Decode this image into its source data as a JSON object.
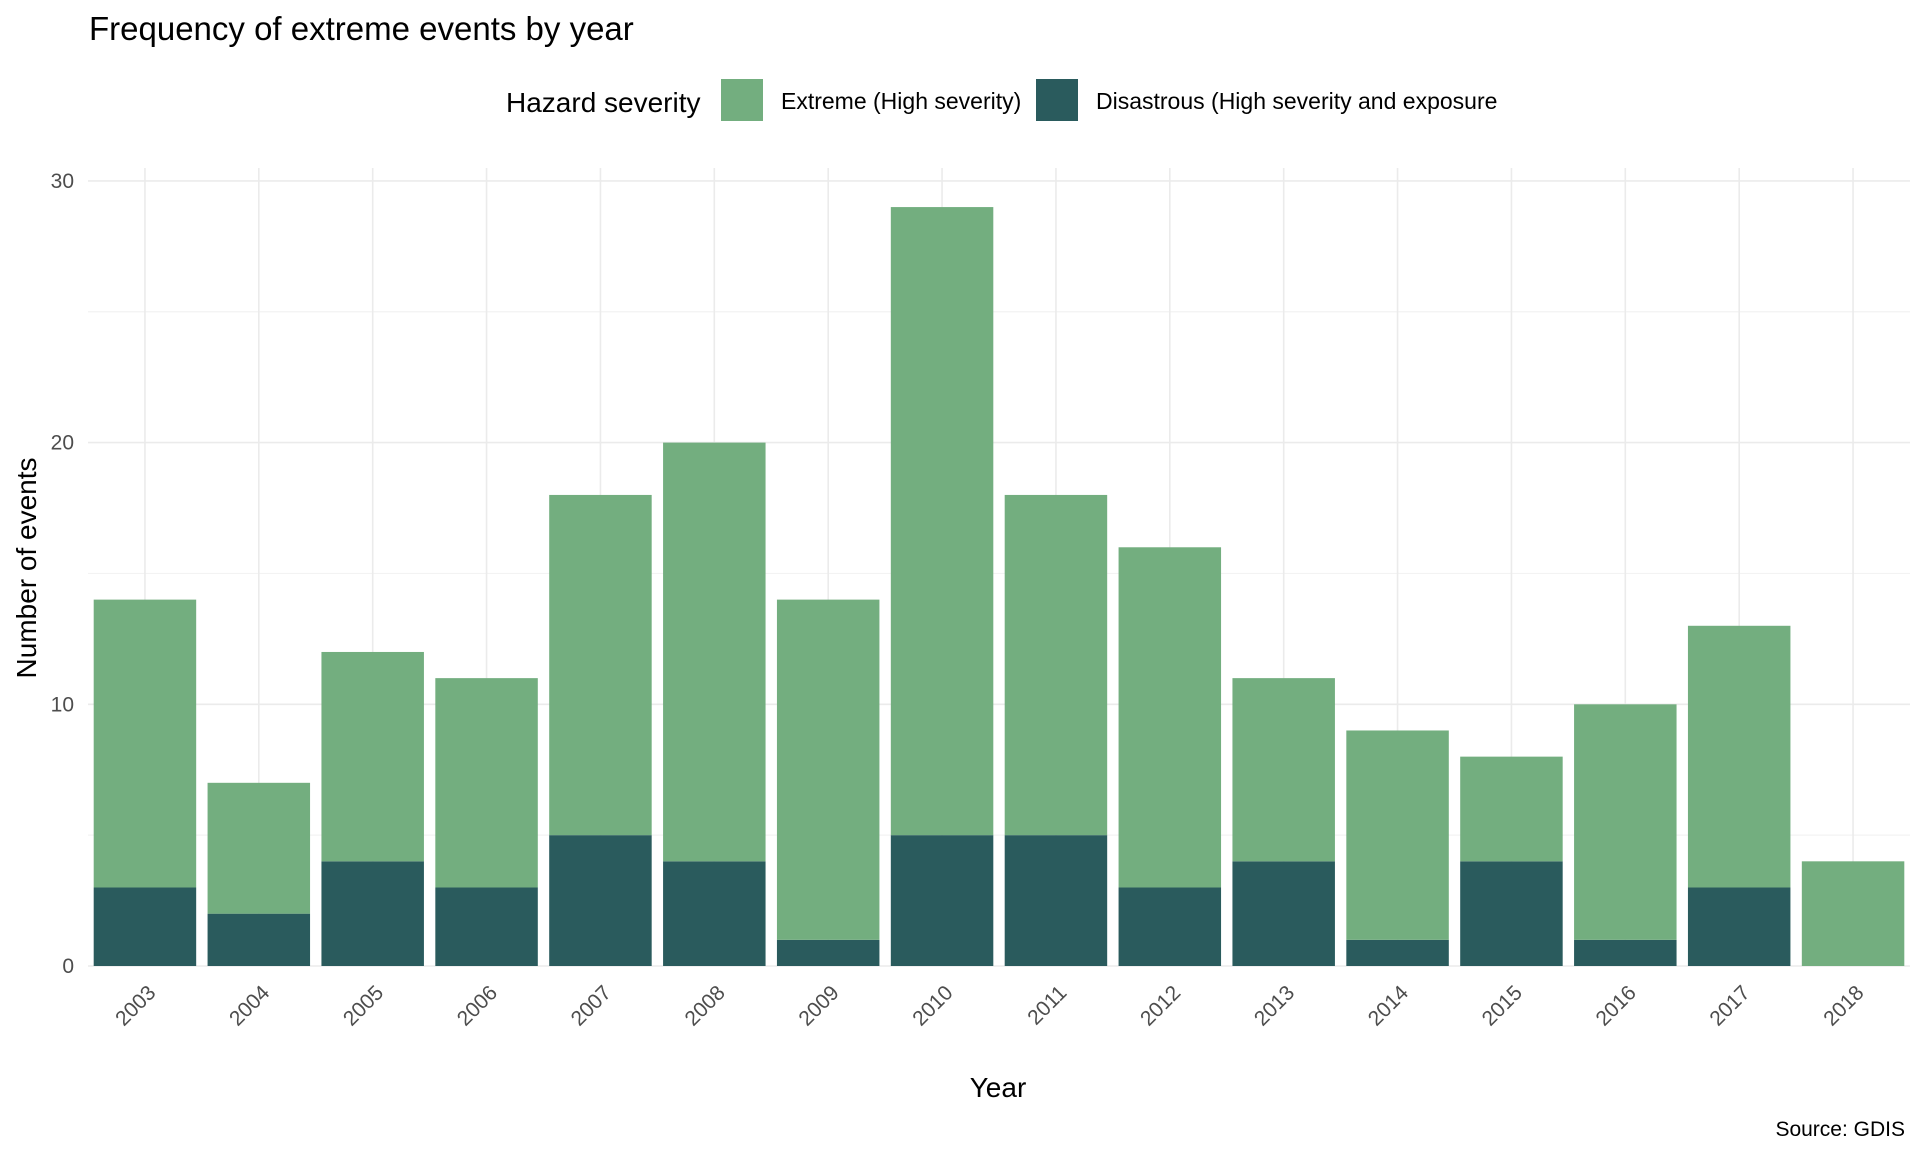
{
  "colors": {
    "extreme": "#73AE7F",
    "disastrous": "#2A5B5D"
  },
  "chart_data": {
    "type": "bar",
    "stacked": true,
    "title": "Frequency of extreme events by year",
    "xlabel": "Year",
    "ylabel": "Number of events",
    "caption": "Source: GDIS",
    "legend": {
      "title": "Hazard severity",
      "position": "top",
      "entries": [
        "Extreme (High severity)",
        "Disastrous (High severity and exposure"
      ]
    },
    "categories": [
      "2003",
      "2004",
      "2005",
      "2006",
      "2007",
      "2008",
      "2009",
      "2010",
      "2011",
      "2012",
      "2013",
      "2014",
      "2015",
      "2016",
      "2017",
      "2018"
    ],
    "series": [
      {
        "name": "Disastrous (High severity and exposure",
        "values": [
          3,
          2,
          4,
          3,
          5,
          4,
          1,
          5,
          5,
          3,
          4,
          1,
          4,
          1,
          3,
          0
        ]
      },
      {
        "name": "Extreme (High severity)",
        "values": [
          11,
          5,
          8,
          8,
          13,
          16,
          13,
          24,
          13,
          13,
          7,
          8,
          4,
          9,
          10,
          4
        ]
      }
    ],
    "totals": [
      14,
      7,
      12,
      11,
      18,
      20,
      14,
      29,
      18,
      16,
      11,
      9,
      8,
      10,
      13,
      4
    ],
    "ylim": [
      0,
      30
    ],
    "yticks": [
      0,
      10,
      20,
      30
    ],
    "grid": true
  }
}
